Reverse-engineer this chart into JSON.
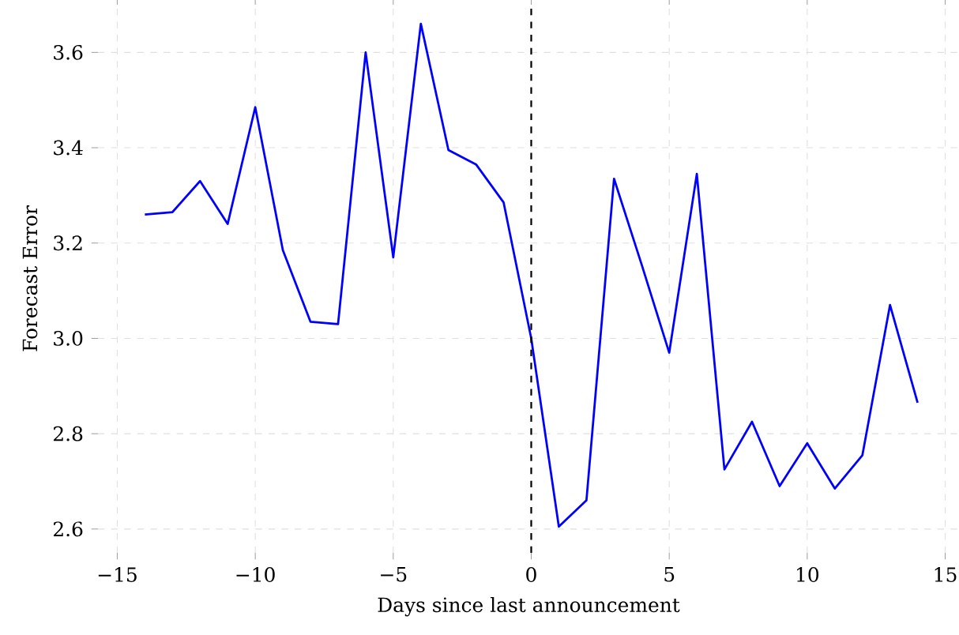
{
  "chart_data": {
    "type": "line",
    "xlabel": "Days since last announcement",
    "ylabel": "Forecast Error",
    "x": [
      -14,
      -13,
      -12,
      -11,
      -10,
      -9,
      -8,
      -7,
      -6,
      -5,
      -4,
      -3,
      -2,
      -1,
      0,
      1,
      2,
      3,
      4,
      5,
      6,
      7,
      8,
      9,
      10,
      11,
      12,
      13,
      14
    ],
    "series": [
      {
        "color": "#0000ff",
        "values": [
          3.26,
          3.265,
          3.33,
          3.24,
          3.485,
          3.185,
          3.035,
          3.03,
          3.6,
          3.17,
          3.66,
          3.395,
          3.365,
          3.285,
          3.0,
          2.605,
          2.66,
          3.335,
          3.155,
          2.97,
          3.345,
          2.725,
          2.825,
          2.69,
          2.78,
          2.685,
          2.755,
          3.07,
          2.865
        ]
      }
    ],
    "xlim": [
      -15.7,
      15.5
    ],
    "ylim": [
      2.55,
      3.7
    ],
    "xticks": [
      {
        "value": -15,
        "label": "−15"
      },
      {
        "value": -10,
        "label": "−10"
      },
      {
        "value": -5,
        "label": "−5"
      },
      0,
      5,
      10,
      15
    ],
    "yticks": [
      {
        "value": 2.6,
        "label": "2.6"
      },
      {
        "value": 2.8,
        "label": "2.8"
      },
      {
        "value": 3.0,
        "label": "3.0"
      },
      {
        "value": 3.2,
        "label": "3.2"
      },
      {
        "value": 3.4,
        "label": "3.4"
      },
      {
        "value": 3.6,
        "label": "3.6"
      }
    ],
    "grid": true,
    "line_style": "solid",
    "marker": "none",
    "ref_lines": [
      {
        "axis": "x",
        "value": 0,
        "color": "#000000",
        "line_style": "dashed"
      }
    ]
  }
}
